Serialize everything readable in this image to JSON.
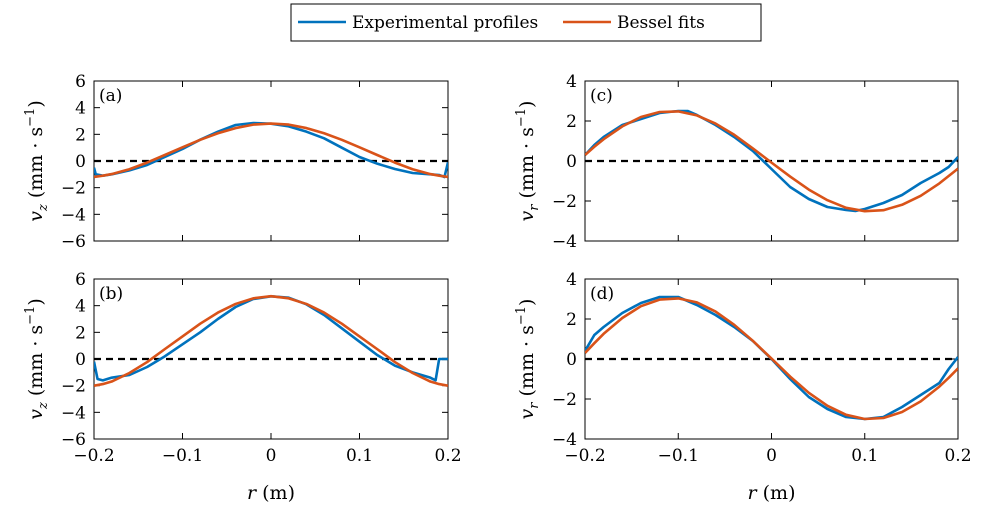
{
  "legend": {
    "entries": [
      {
        "label": "Experimental profiles",
        "color": "#0072BD"
      },
      {
        "label": "Bessel fits",
        "color": "#D95319"
      }
    ]
  },
  "colors": {
    "experimental": "#0072BD",
    "fit": "#D95319",
    "zero_line": "#000000"
  },
  "chart_data": [
    {
      "type": "line",
      "panel": "(a)",
      "xlabel": "",
      "ylabel_var": "v",
      "ylabel_sub": "z",
      "ylabel_unit": "(mm · s",
      "ylabel_exp": "−1",
      "ylabel_close": ")",
      "xlim": [
        -0.2,
        0.2
      ],
      "ylim": [
        -6,
        6
      ],
      "xticks": [
        -0.2,
        -0.1,
        0,
        0.1,
        0.2
      ],
      "xtick_labels": [
        "",
        "",
        "",
        "",
        ""
      ],
      "yticks": [
        -6,
        -4,
        -2,
        0,
        2,
        4,
        6
      ],
      "ytick_labels": [
        "−6",
        "−4",
        "−2",
        "0",
        "2",
        "4",
        "6"
      ],
      "zero_line": true,
      "series": [
        {
          "name": "Experimental profiles",
          "x": [
            -0.2,
            -0.198,
            -0.19,
            -0.18,
            -0.16,
            -0.14,
            -0.12,
            -0.1,
            -0.08,
            -0.06,
            -0.04,
            -0.02,
            0,
            0.02,
            0.04,
            0.06,
            0.08,
            0.1,
            0.12,
            0.14,
            0.16,
            0.18,
            0.19,
            0.196,
            0.2
          ],
          "y": [
            -0.5,
            -1.0,
            -1.1,
            -1.0,
            -0.7,
            -0.3,
            0.3,
            0.9,
            1.6,
            2.2,
            2.7,
            2.85,
            2.8,
            2.6,
            2.2,
            1.7,
            1.0,
            0.3,
            -0.2,
            -0.6,
            -0.9,
            -1.0,
            -1.05,
            -1.2,
            -0.1
          ]
        },
        {
          "name": "Bessel fits",
          "x": [
            -0.2,
            -0.19,
            -0.18,
            -0.16,
            -0.14,
            -0.12,
            -0.1,
            -0.08,
            -0.06,
            -0.04,
            -0.02,
            0,
            0.02,
            0.04,
            0.06,
            0.08,
            0.1,
            0.12,
            0.14,
            0.16,
            0.18,
            0.19,
            0.2
          ],
          "y": [
            -1.2,
            -1.1,
            -0.98,
            -0.62,
            -0.12,
            0.45,
            1.03,
            1.59,
            2.08,
            2.47,
            2.73,
            2.81,
            2.73,
            2.47,
            2.08,
            1.59,
            1.03,
            0.45,
            -0.12,
            -0.62,
            -0.98,
            -1.1,
            -1.2
          ]
        }
      ]
    },
    {
      "type": "line",
      "panel": "(c)",
      "xlabel": "",
      "ylabel_var": "v",
      "ylabel_sub": "r",
      "ylabel_unit": "(mm · s",
      "ylabel_exp": "−1",
      "ylabel_close": ")",
      "xlim": [
        -0.2,
        0.2
      ],
      "ylim": [
        -4,
        4
      ],
      "xticks": [
        -0.2,
        -0.1,
        0,
        0.1,
        0.2
      ],
      "xtick_labels": [
        "",
        "",
        "",
        "",
        ""
      ],
      "yticks": [
        -4,
        -2,
        0,
        2,
        4
      ],
      "ytick_labels": [
        "−4",
        "−2",
        "0",
        "2",
        "4"
      ],
      "zero_line": true,
      "series": [
        {
          "name": "Experimental profiles",
          "x": [
            -0.2,
            -0.19,
            -0.18,
            -0.16,
            -0.14,
            -0.12,
            -0.1,
            -0.09,
            -0.08,
            -0.06,
            -0.04,
            -0.02,
            0,
            0.02,
            0.04,
            0.06,
            0.08,
            0.09,
            0.1,
            0.12,
            0.14,
            0.16,
            0.18,
            0.19,
            0.2
          ],
          "y": [
            0.3,
            0.8,
            1.2,
            1.8,
            2.1,
            2.4,
            2.5,
            2.5,
            2.3,
            1.8,
            1.2,
            0.5,
            -0.4,
            -1.3,
            -1.9,
            -2.3,
            -2.45,
            -2.5,
            -2.4,
            -2.1,
            -1.7,
            -1.1,
            -0.6,
            -0.3,
            0.2
          ]
        },
        {
          "name": "Bessel fits",
          "x": [
            -0.2,
            -0.19,
            -0.18,
            -0.16,
            -0.14,
            -0.12,
            -0.1,
            -0.08,
            -0.06,
            -0.04,
            -0.02,
            0,
            0.02,
            0.04,
            0.06,
            0.08,
            0.1,
            0.12,
            0.14,
            0.16,
            0.18,
            0.19,
            0.2
          ],
          "y": [
            0.3,
            0.71,
            1.09,
            1.73,
            2.2,
            2.45,
            2.48,
            2.28,
            1.87,
            1.31,
            0.63,
            -0.08,
            -0.78,
            -1.43,
            -1.96,
            -2.34,
            -2.51,
            -2.46,
            -2.19,
            -1.74,
            -1.12,
            -0.75,
            -0.38
          ]
        }
      ]
    },
    {
      "type": "line",
      "panel": "(b)",
      "xlabel": "r (m)",
      "ylabel_var": "v",
      "ylabel_sub": "z",
      "ylabel_unit": "(mm · s",
      "ylabel_exp": "−1",
      "ylabel_close": ")",
      "xlim": [
        -0.2,
        0.2
      ],
      "ylim": [
        -6,
        6
      ],
      "xticks": [
        -0.2,
        -0.1,
        0,
        0.1,
        0.2
      ],
      "xtick_labels": [
        "−0.2",
        "−0.1",
        "0",
        "0.1",
        "0.2"
      ],
      "yticks": [
        -6,
        -4,
        -2,
        0,
        2,
        4,
        6
      ],
      "ytick_labels": [
        "−6",
        "−4",
        "−2",
        "0",
        "2",
        "4",
        "6"
      ],
      "zero_line": true,
      "series": [
        {
          "name": "Experimental profiles",
          "x": [
            -0.2,
            -0.196,
            -0.19,
            -0.18,
            -0.16,
            -0.14,
            -0.12,
            -0.1,
            -0.08,
            -0.06,
            -0.04,
            -0.02,
            0,
            0.02,
            0.04,
            0.06,
            0.08,
            0.1,
            0.12,
            0.14,
            0.16,
            0.18,
            0.186,
            0.19,
            0.2
          ],
          "y": [
            -0.2,
            -1.5,
            -1.6,
            -1.4,
            -1.2,
            -0.6,
            0.2,
            1.1,
            2.0,
            3.0,
            3.9,
            4.5,
            4.7,
            4.6,
            4.1,
            3.3,
            2.3,
            1.3,
            0.3,
            -0.5,
            -1.0,
            -1.4,
            -1.6,
            0.0,
            0.0
          ]
        },
        {
          "name": "Bessel fits",
          "x": [
            -0.2,
            -0.19,
            -0.18,
            -0.16,
            -0.14,
            -0.12,
            -0.1,
            -0.08,
            -0.06,
            -0.04,
            -0.02,
            0,
            0.02,
            0.04,
            0.06,
            0.08,
            0.1,
            0.12,
            0.14,
            0.16,
            0.18,
            0.19,
            0.2
          ],
          "y": [
            -2.0,
            -1.88,
            -1.69,
            -1.05,
            -0.23,
            0.74,
            1.69,
            2.65,
            3.48,
            4.13,
            4.55,
            4.71,
            4.55,
            4.13,
            3.48,
            2.65,
            1.69,
            0.74,
            -0.23,
            -1.05,
            -1.69,
            -1.88,
            -2.0
          ]
        }
      ]
    },
    {
      "type": "line",
      "panel": "(d)",
      "xlabel": "r (m)",
      "ylabel_var": "v",
      "ylabel_sub": "r",
      "ylabel_unit": "(mm · s",
      "ylabel_exp": "−1",
      "ylabel_close": ")",
      "xlim": [
        -0.2,
        0.2
      ],
      "ylim": [
        -4,
        4
      ],
      "xticks": [
        -0.2,
        -0.1,
        0,
        0.1,
        0.2
      ],
      "xtick_labels": [
        "−0.2",
        "−0.1",
        "0",
        "0.1",
        "0.2"
      ],
      "yticks": [
        -4,
        -2,
        0,
        2,
        4
      ],
      "ytick_labels": [
        "−4",
        "−2",
        "0",
        "2",
        "4"
      ],
      "zero_line": true,
      "series": [
        {
          "name": "Experimental profiles",
          "x": [
            -0.2,
            -0.19,
            -0.18,
            -0.16,
            -0.14,
            -0.12,
            -0.1,
            -0.08,
            -0.06,
            -0.04,
            -0.02,
            0,
            0.02,
            0.04,
            0.06,
            0.08,
            0.1,
            0.12,
            0.14,
            0.16,
            0.18,
            0.19,
            0.2
          ],
          "y": [
            0.4,
            1.2,
            1.6,
            2.3,
            2.8,
            3.1,
            3.1,
            2.7,
            2.2,
            1.6,
            0.9,
            0.0,
            -1.0,
            -1.9,
            -2.5,
            -2.9,
            -3.0,
            -2.9,
            -2.4,
            -1.8,
            -1.2,
            -0.5,
            0.1
          ]
        },
        {
          "name": "Bessel fits",
          "x": [
            -0.2,
            -0.19,
            -0.18,
            -0.16,
            -0.14,
            -0.12,
            -0.1,
            -0.08,
            -0.06,
            -0.04,
            -0.02,
            0,
            0.02,
            0.04,
            0.06,
            0.08,
            0.1,
            0.12,
            0.14,
            0.16,
            0.18,
            0.19,
            0.2
          ],
          "y": [
            0.3,
            0.79,
            1.26,
            2.05,
            2.64,
            2.97,
            3.03,
            2.83,
            2.37,
            1.71,
            0.91,
            0.02,
            -0.88,
            -1.69,
            -2.34,
            -2.79,
            -3.0,
            -2.95,
            -2.65,
            -2.12,
            -1.38,
            -0.94,
            -0.47
          ]
        }
      ]
    }
  ]
}
